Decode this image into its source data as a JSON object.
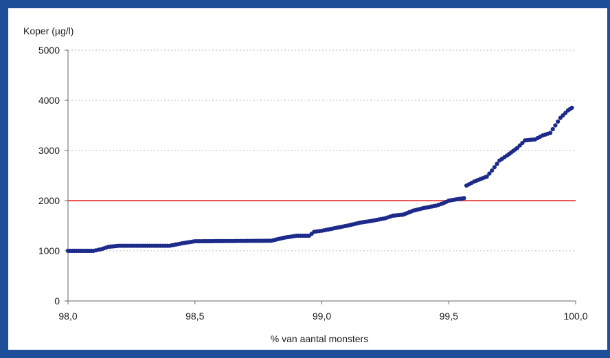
{
  "chart_data": {
    "type": "scatter",
    "ylabel": "Koper (µg/l)",
    "xlabel": "% van aantal monsters",
    "xlim": [
      98.0,
      100.0
    ],
    "ylim": [
      0,
      5000
    ],
    "x_ticks": [
      "98,0",
      "98,5",
      "99,0",
      "99,5",
      "100,0"
    ],
    "y_ticks": [
      "0",
      "1000",
      "2000",
      "3000",
      "4000",
      "5000"
    ],
    "grid": "horizontal-dotted",
    "reference_line": {
      "y": 2000,
      "color": "#e02020"
    },
    "marker_color": "#1c2a8a",
    "series": [
      {
        "points": [
          [
            98.0,
            1000
          ],
          [
            98.1,
            1000
          ],
          [
            98.13,
            1030
          ],
          [
            98.16,
            1080
          ],
          [
            98.2,
            1100
          ],
          [
            98.4,
            1100
          ],
          [
            98.45,
            1150
          ],
          [
            98.5,
            1190
          ],
          [
            98.8,
            1200
          ],
          [
            98.85,
            1260
          ],
          [
            98.9,
            1300
          ],
          [
            98.95,
            1300
          ],
          [
            98.97,
            1380
          ],
          [
            99.0,
            1400
          ],
          [
            99.05,
            1450
          ],
          [
            99.1,
            1500
          ],
          [
            99.15,
            1560
          ],
          [
            99.2,
            1600
          ],
          [
            99.25,
            1650
          ],
          [
            99.28,
            1700
          ],
          [
            99.32,
            1720
          ],
          [
            99.36,
            1800
          ],
          [
            99.4,
            1850
          ],
          [
            99.45,
            1900
          ],
          [
            99.48,
            1950
          ],
          [
            99.5,
            2000
          ],
          [
            99.56,
            2050
          ],
          [
            99.57,
            2300
          ],
          [
            99.6,
            2380
          ],
          [
            99.65,
            2480
          ],
          [
            99.67,
            2600
          ],
          [
            99.7,
            2800
          ],
          [
            99.73,
            2900
          ],
          [
            99.77,
            3050
          ],
          [
            99.8,
            3200
          ],
          [
            99.84,
            3220
          ],
          [
            99.87,
            3300
          ],
          [
            99.9,
            3350
          ],
          [
            99.92,
            3500
          ],
          [
            99.94,
            3650
          ],
          [
            99.97,
            3800
          ],
          [
            99.985,
            3850
          ]
        ]
      }
    ]
  }
}
